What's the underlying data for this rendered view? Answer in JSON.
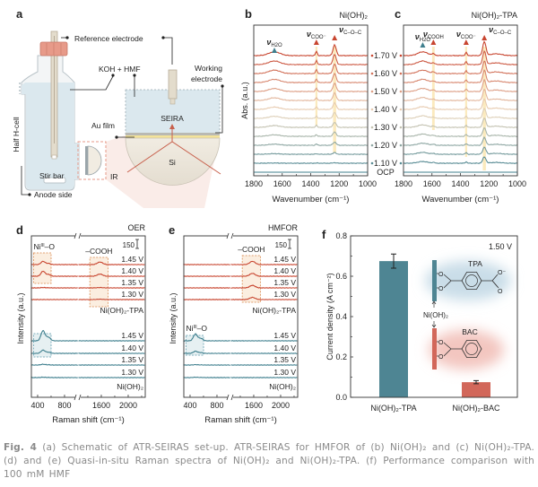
{
  "colors": {
    "red": "#c8452f",
    "beige": "#ead6bb",
    "teal": "#3f7f8e",
    "highlight": "#f9e3a8",
    "bar_tpa": "#4e8593",
    "bar_bac": "#d2675a",
    "cap": "#e79a89",
    "liquid": "#dbe8ee"
  },
  "panel_a": {
    "letter": "a",
    "reference_electrode": "Reference electrode",
    "koh_hmf": "KOH + HMF",
    "working_electrode_1": "Working",
    "working_electrode_2": "electrode",
    "seira": "SEIRA",
    "au_film": "Au film",
    "si": "Si",
    "ir": "IR",
    "stir_bar": "Stir bar",
    "half_h_cell": "Half H-cell",
    "anode_side": "Anode side"
  },
  "chart_data": [
    {
      "id": "b",
      "letter": "b",
      "type": "line",
      "title": "Ni(OH)₂",
      "xlabel": "Wavenumber (cm⁻¹)",
      "ylabel": "Abs. (a.u.)",
      "xlim": [
        1800,
        1000
      ],
      "xticks": [
        "1800",
        "1600",
        "1400",
        "1200",
        "1000"
      ],
      "grid": false,
      "peaks": [
        {
          "symbol": "ν",
          "sub": "H2O",
          "position": 1655,
          "width": 40,
          "amplitude": 0.35,
          "marker": "teal"
        },
        {
          "symbol": "ν",
          "sub": "COO⁻",
          "position": 1360,
          "width": 6,
          "amplitude": 0.4,
          "marker": "red"
        },
        {
          "symbol": "ν",
          "sub": "C–O–C",
          "position": 1232,
          "width": 11,
          "amplitude": 1.0,
          "marker": "red"
        }
      ],
      "traces": [
        {
          "potential": "1.70 V",
          "relative_intensity": 1.0
        },
        {
          "potential": "",
          "relative_intensity": 0.95
        },
        {
          "potential": "1.60 V",
          "relative_intensity": 0.9
        },
        {
          "potential": "",
          "relative_intensity": 0.84
        },
        {
          "potential": "1.50 V",
          "relative_intensity": 0.78
        },
        {
          "potential": "",
          "relative_intensity": 0.7
        },
        {
          "potential": "1.40 V",
          "relative_intensity": 0.62
        },
        {
          "potential": "",
          "relative_intensity": 0.55
        },
        {
          "potential": "1.30 V",
          "relative_intensity": 0.48
        },
        {
          "potential": "",
          "relative_intensity": 0.4
        },
        {
          "potential": "1.20 V",
          "relative_intensity": 0.3
        },
        {
          "potential": "",
          "relative_intensity": 0.15
        },
        {
          "potential": "1.10 V",
          "relative_intensity": 0.05
        },
        {
          "potential": "OCP",
          "relative_intensity": 0.0
        }
      ]
    },
    {
      "id": "c",
      "letter": "c",
      "type": "line",
      "title": "Ni(OH)₂-TPA",
      "xlabel": "Wavenumber (cm⁻¹)",
      "xlim": [
        1800,
        1000
      ],
      "xticks": [
        "1800",
        "1600",
        "1400",
        "1200",
        "1000"
      ],
      "grid": false,
      "peaks": [
        {
          "symbol": "ν",
          "sub": "H2O",
          "position": 1665,
          "width": 35,
          "amplitude": 0.35,
          "marker": "teal"
        },
        {
          "symbol": "ν",
          "sub": "COOH",
          "position": 1590,
          "width": 10,
          "amplitude": 0.15,
          "marker": "red"
        },
        {
          "symbol": "ν",
          "sub": "COO⁻",
          "position": 1360,
          "width": 6,
          "amplitude": 0.3,
          "marker": "red"
        },
        {
          "symbol": "ν",
          "sub": "C–O–C",
          "position": 1232,
          "width": 11,
          "amplitude": 1.3,
          "marker": "red"
        }
      ],
      "traces": [
        {
          "potential": "1.70 V",
          "relative_intensity": 1.0
        },
        {
          "potential": "",
          "relative_intensity": 0.95
        },
        {
          "potential": "1.60 V",
          "relative_intensity": 0.9
        },
        {
          "potential": "",
          "relative_intensity": 0.86
        },
        {
          "potential": "1.50 V",
          "relative_intensity": 0.82
        },
        {
          "potential": "",
          "relative_intensity": 0.78
        },
        {
          "potential": "1.40 V",
          "relative_intensity": 0.74
        },
        {
          "potential": "",
          "relative_intensity": 0.7
        },
        {
          "potential": "1.30 V",
          "relative_intensity": 0.66
        },
        {
          "potential": "",
          "relative_intensity": 0.6
        },
        {
          "potential": "1.20 V",
          "relative_intensity": 0.55
        },
        {
          "potential": "",
          "relative_intensity": 0.5
        },
        {
          "potential": "1.10 V",
          "relative_intensity": 0.45
        },
        {
          "potential": "OCP",
          "relative_intensity": 0.0
        }
      ]
    },
    {
      "id": "d",
      "letter": "d",
      "type": "line",
      "title": "OER",
      "xlabel": "Raman shift (cm⁻¹)",
      "ylabel": "Intensity (a.u.)",
      "xlim_segments": [
        [
          300,
          1000
        ],
        [
          1260,
          2250
        ]
      ],
      "xticks": [
        "400",
        "800",
        "1600",
        "2000"
      ],
      "xtick_values": [
        400,
        800,
        1600,
        2000
      ],
      "scale_bar": "150",
      "grid": false,
      "annotations": {
        "ni_o": "Ni",
        "ni_o_sup": "III",
        "ni_o_suffix": "–O",
        "cooh": "–COOH"
      },
      "groups": [
        {
          "label": "Ni(OH)₂-TPA",
          "color": "red",
          "traces": [
            {
              "potential": "1.45 V",
              "ni_o": 0.45,
              "cooh": 0.35
            },
            {
              "potential": "1.40 V",
              "ni_o": 0.7,
              "cooh": 0.3
            },
            {
              "potential": "1.35 V",
              "ni_o": 0.05,
              "cooh": 0.05
            },
            {
              "potential": "1.30 V",
              "ni_o": 0.0,
              "cooh": 0.05
            }
          ]
        },
        {
          "label": "Ni(OH)₂",
          "color": "teal",
          "traces": [
            {
              "potential": "1.45 V",
              "ni_o": 1.4,
              "cooh": 0.0
            },
            {
              "potential": "1.40 V",
              "ni_o": 0.45,
              "cooh": 0.0
            },
            {
              "potential": "1.35 V",
              "ni_o": 0.1,
              "cooh": 0.0
            },
            {
              "potential": "1.30 V",
              "ni_o": 0.05,
              "cooh": 0.0
            }
          ]
        }
      ]
    },
    {
      "id": "e",
      "letter": "e",
      "type": "line",
      "title": "HMFOR",
      "xlabel": "Raman shift (cm⁻¹)",
      "ylabel": "Intensity (a.u.)",
      "xlim_segments": [
        [
          300,
          1000
        ],
        [
          1260,
          2250
        ]
      ],
      "xticks": [
        "400",
        "800",
        "1600",
        "2000"
      ],
      "xtick_values": [
        400,
        800,
        1600,
        2000
      ],
      "scale_bar": "150",
      "grid": false,
      "annotations": {
        "ni_o": "Ni",
        "ni_o_sup": "III",
        "ni_o_suffix": "–O",
        "cooh": "–COOH"
      },
      "groups": [
        {
          "label": "Ni(OH)₂-TPA",
          "color": "red",
          "traces": [
            {
              "potential": "1.45 V",
              "ni_o": 0.0,
              "cooh": 0.45
            },
            {
              "potential": "1.40 V",
              "ni_o": 0.0,
              "cooh": 0.4
            },
            {
              "potential": "1.35 V",
              "ni_o": 0.0,
              "cooh": 0.35
            },
            {
              "potential": "1.30 V",
              "ni_o": 0.0,
              "cooh": 0.3
            }
          ]
        },
        {
          "label": "Ni(OH)₂",
          "color": "teal",
          "traces": [
            {
              "potential": "1.45 V",
              "ni_o": 0.95,
              "cooh": 0.0
            },
            {
              "potential": "1.40 V",
              "ni_o": 0.3,
              "cooh": 0.0
            },
            {
              "potential": "1.35 V",
              "ni_o": 0.05,
              "cooh": 0.0
            },
            {
              "potential": "1.30 V",
              "ni_o": 0.05,
              "cooh": 0.0
            }
          ]
        }
      ]
    },
    {
      "id": "f",
      "letter": "f",
      "type": "bar",
      "annotation": "1.50 V",
      "ylabel": "Current density (A cm⁻²)",
      "ylim": [
        0,
        0.8
      ],
      "yticks": [
        "0.0",
        "0.2",
        "0.4",
        "0.6",
        "0.8"
      ],
      "categories": [
        "Ni(OH)₂-TPA",
        "Ni(OH)₂-BAC"
      ],
      "values": [
        0.675,
        0.075
      ],
      "errors": [
        0.035,
        0.008
      ],
      "grid": false,
      "inset": {
        "tpa": "TPA",
        "bac": "BAC",
        "support": "Ni(OH)₂",
        "o": "O",
        "o_minus": "O⁻"
      }
    }
  ],
  "caption": {
    "label": "Fig. 4",
    "text": "(a) Schematic of ATR-SEIRAS set-up. ATR-SEIRAS for HMFOR of (b) Ni(OH)₂ and (c) Ni(OH)₂-TPA. (d) and (e) Quasi-in-situ Raman spectra of Ni(OH)₂ and Ni(OH)₂-TPA. (f) Performance comparison with 100 mM HMF"
  }
}
